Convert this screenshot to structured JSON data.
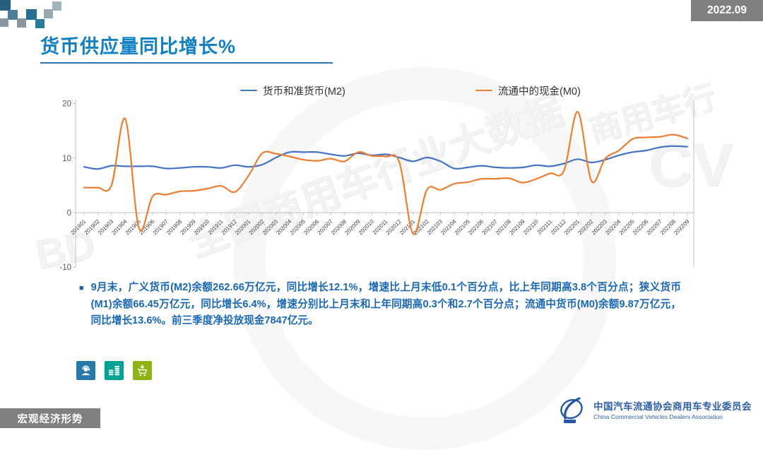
{
  "header": {
    "badge": "2022.09",
    "title": "货币供应量同比增长%"
  },
  "theme": {
    "title_blue": "#1180C4",
    "accent_rule": "#2E75B6",
    "badge_gray": "#808080",
    "bullet_text_blue": "#1A68B5",
    "footer_gray": "#7F7F7F",
    "org_logo_blue": "#2E5FA8",
    "m2_line": "#4472C4",
    "m0_line": "#ED7D31",
    "icon_support_bg": "#2878A9",
    "icon_coins_bg": "#00A295",
    "icon_cart_bg": "#8FB313"
  },
  "chart_data": {
    "type": "line",
    "title": "货币供应量同比增长%",
    "xlabel": "",
    "ylabel": "",
    "ylim": [
      -10,
      20
    ],
    "yticks": [
      20,
      10,
      0,
      -10
    ],
    "grid": false,
    "legend_position": "top",
    "line_smoothing": true,
    "categories": [
      "201901",
      "201902",
      "201903",
      "201904",
      "201905",
      "201906",
      "201907",
      "201908",
      "201909",
      "201910",
      "201911",
      "201912",
      "202001",
      "202002",
      "202003",
      "202004",
      "202005",
      "202006",
      "202007",
      "202008",
      "202009",
      "202010",
      "202011",
      "202012",
      "202101",
      "202102",
      "202103",
      "202104",
      "202105",
      "202106",
      "202107",
      "202108",
      "202109",
      "202110",
      "202111",
      "202112",
      "202201",
      "202202",
      "202203",
      "202204",
      "202205",
      "202206",
      "202207",
      "202208",
      "202209"
    ],
    "series": [
      {
        "name": "货币和准货币(M2)",
        "color": "#4472C4",
        "values": [
          8.4,
          8.0,
          8.6,
          8.5,
          8.5,
          8.5,
          8.1,
          8.2,
          8.4,
          8.4,
          8.2,
          8.7,
          8.4,
          8.8,
          10.1,
          11.1,
          11.1,
          11.1,
          10.7,
          10.4,
          10.9,
          10.5,
          10.7,
          10.1,
          9.4,
          10.1,
          9.4,
          8.1,
          8.3,
          8.6,
          8.3,
          8.2,
          8.3,
          8.7,
          8.5,
          9.0,
          9.8,
          9.2,
          9.7,
          10.5,
          11.1,
          11.4,
          12.0,
          12.2,
          12.1
        ]
      },
      {
        "name": "流通中的现金(M0)",
        "color": "#ED7D31",
        "values": [
          4.6,
          4.6,
          5.0,
          17.2,
          -2.8,
          3.0,
          3.3,
          3.9,
          4.0,
          4.4,
          4.9,
          3.8,
          6.8,
          10.9,
          10.8,
          10.3,
          9.7,
          9.5,
          9.9,
          9.4,
          11.1,
          10.4,
          10.3,
          9.2,
          -3.9,
          4.2,
          4.2,
          5.3,
          5.6,
          6.2,
          6.2,
          6.3,
          5.5,
          6.2,
          7.2,
          7.7,
          18.5,
          5.8,
          9.9,
          11.4,
          13.5,
          13.8,
          13.9,
          14.3,
          13.6
        ]
      }
    ]
  },
  "bullet": {
    "marker": "■",
    "text": "9月末，广义货币(M2)余额262.66万亿元，同比增长12.1%，增速比上月末低0.1个百分点，比上年同期高3.8个百分点；狭义货币(M1)余额66.45万亿元，同比增长6.4%，增速分别比上月末和上年同期高0.3个和2.7个百分点；流通中货币(M0)余额9.87万亿元，同比增长13.6%。前三季度净投放现金7847亿元。"
  },
  "footer": {
    "section_label": "宏观经济形势",
    "org_cn": "中国汽车流通协会商用车专业委员会",
    "org_en": "China Commercial Vehicles Dealers Association"
  },
  "watermarks": {
    "diagonal": "全国商用车行业大数据",
    "corner": "商用车行",
    "cv": "CV",
    "bd": "BD"
  }
}
